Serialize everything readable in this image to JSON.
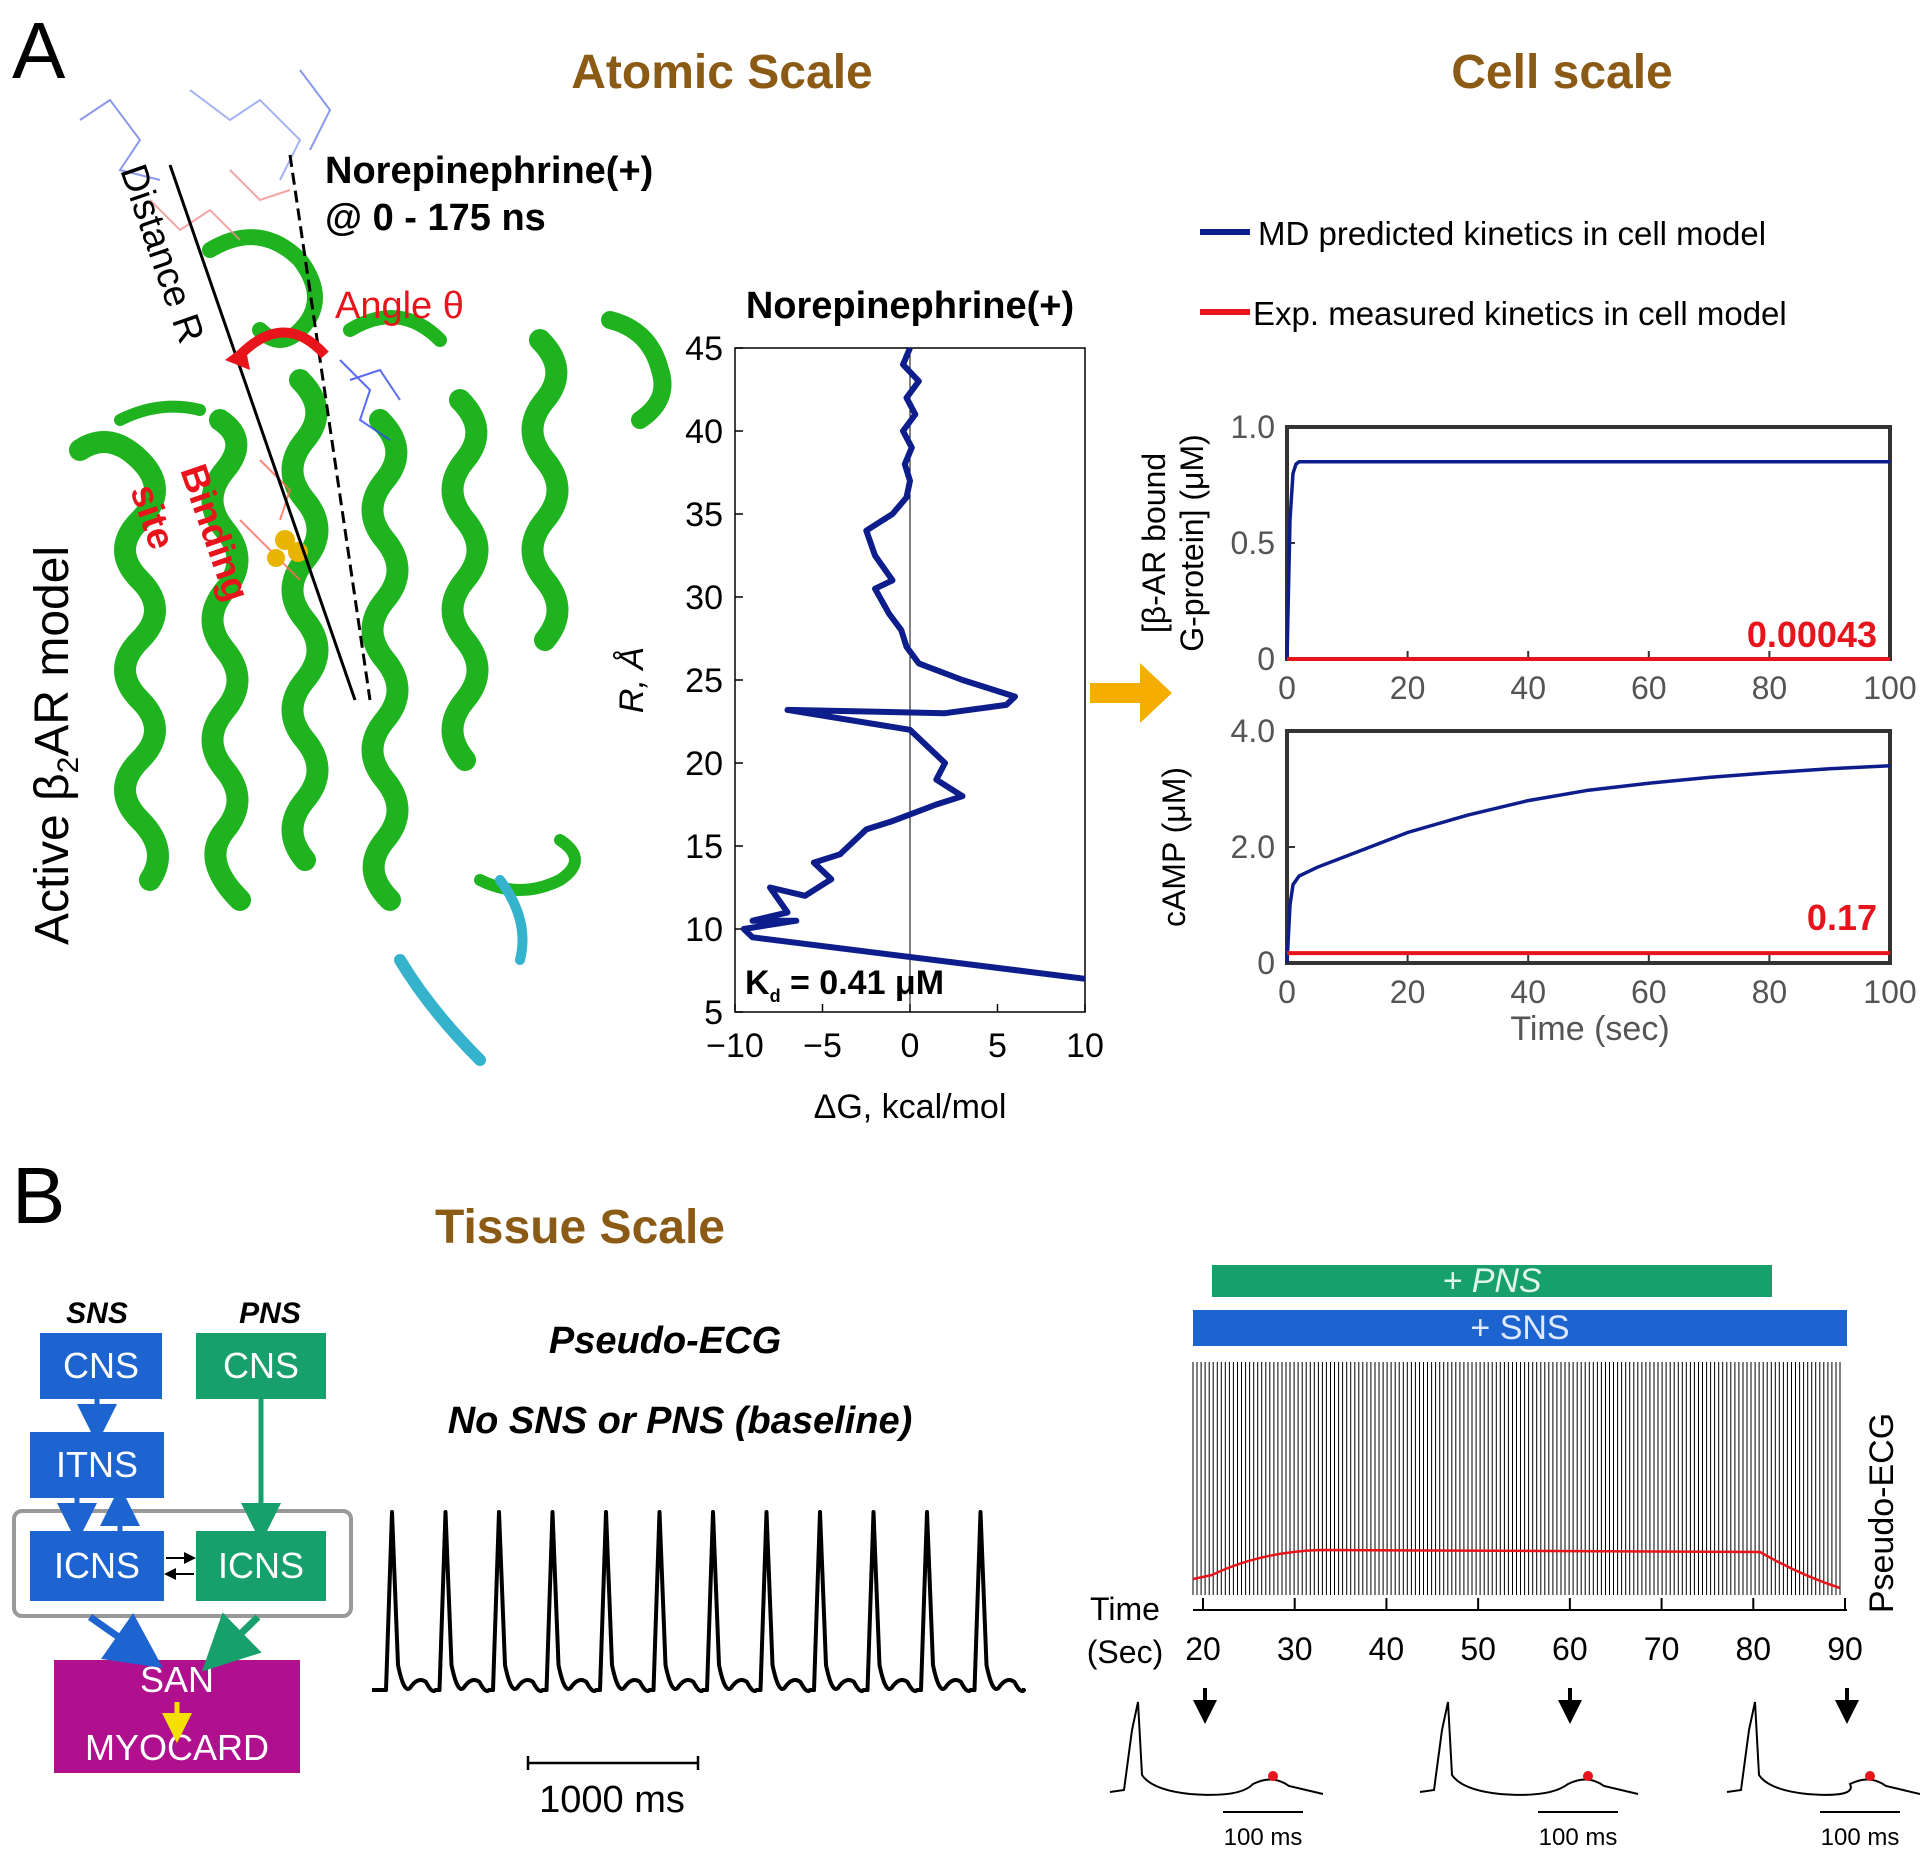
{
  "panel_a": {
    "label": "A",
    "atomic_title": "Atomic Scale",
    "cell_title": "Cell scale",
    "model_label": "Active β",
    "model_label_sub": "2",
    "model_label_tail": "AR model",
    "ligand_label": "Norepinephrine(+)",
    "time_label": "@ 0 - 175 ns",
    "distance_label": "Distance R",
    "angle_label": "Angle θ",
    "binding_label_1": "Binding",
    "binding_label_2": "site",
    "legend_md": "MD predicted kinetics in cell model",
    "legend_exp": "Exp. measured kinetics in cell model",
    "colors": {
      "md": "#0d1e8c",
      "exp": "#e8141c",
      "accent": "#8b5a14",
      "helix": "#1fb31f",
      "arrow": "#f5ad00"
    }
  },
  "panel_b": {
    "label": "B",
    "tissue_title": "Tissue Scale",
    "sns_header": "SNS",
    "pns_header": "PNS",
    "sns_cns": "CNS",
    "pns_cns": "CNS",
    "itns": "ITNS",
    "sns_icns": "ICNS",
    "pns_icns": "ICNS",
    "san": "SAN",
    "myocard": "MYOCARD",
    "ecg_title": "Pseudo-ECG",
    "ecg_subtitle": "No SNS or PNS (baseline)",
    "scale_bar": "1000 ms",
    "pns_bar": "+ PNS",
    "sns_bar": "+ SNS",
    "ecg_axis_label": "Pseudo-ECG",
    "time_axis_1": "Time",
    "time_axis_2": "(Sec)",
    "inset_scale": "100 ms",
    "time_ticks": [
      "20",
      "30",
      "40",
      "50",
      "60",
      "70",
      "80",
      "90"
    ],
    "colors": {
      "sns": "#1e64d0",
      "pns": "#17a06b",
      "san": "#b0108e"
    }
  },
  "chart_data": [
    {
      "type": "line",
      "title": "Norepinephrine(+)",
      "xlabel": "ΔG, kcal/mol",
      "ylabel": "R, Å",
      "xlim": [
        -10,
        10
      ],
      "ylim": [
        5,
        45
      ],
      "xticks": [
        "−10",
        "−5",
        "0",
        "5",
        "10"
      ],
      "yticks": [
        "5",
        "10",
        "15",
        "20",
        "25",
        "30",
        "35",
        "40",
        "45"
      ],
      "annotation": "K",
      "annotation_sub": "d",
      "annotation_tail": " = 0.41 μM",
      "series": [
        {
          "x": [
            0.0,
            -0.4,
            0.5,
            -0.2,
            0.3,
            -0.4,
            0.1,
            -0.3,
            0.0,
            -0.2,
            -1.0,
            -2.5,
            -2.0,
            -1.0,
            -2.0,
            -1.2,
            -0.5,
            -0.2,
            0.5,
            3.0,
            6.0,
            5.5,
            2.0,
            -7.0,
            0.0,
            1.0,
            2.0,
            1.5,
            3.0,
            1.5,
            -1.0,
            -2.5,
            -3.5,
            -4.0,
            -5.5,
            -4.5,
            -6.0,
            -8.0,
            -7.0,
            -9.0,
            -6.5,
            -9.5,
            -9.0,
            10.0
          ],
          "y": [
            45,
            44,
            43,
            42,
            41,
            40,
            39,
            38,
            37,
            36,
            35,
            34,
            32.5,
            31,
            30.5,
            29,
            28,
            27,
            26,
            25,
            24,
            23.5,
            23,
            23.2,
            22,
            21,
            20,
            19,
            18,
            17.5,
            16.5,
            16,
            15,
            14.5,
            14,
            13,
            12,
            12.5,
            11,
            10.5,
            10.5,
            10,
            9.5,
            7
          ]
        }
      ]
    },
    {
      "type": "line",
      "ylabel_line1": "[β-AR bound",
      "ylabel_line2": "G-protein] (μM)",
      "xlim": [
        0,
        100
      ],
      "ylim": [
        0,
        1.0
      ],
      "xticks": [
        "0",
        "20",
        "40",
        "60",
        "80",
        "100"
      ],
      "yticks": [
        "0",
        "0.5",
        "1.0"
      ],
      "annotation": "0.00043",
      "series": [
        {
          "x": [
            0,
            0.5,
            1,
            1.5,
            2,
            100
          ],
          "y": [
            0,
            0.6,
            0.8,
            0.84,
            0.85,
            0.85
          ]
        },
        {
          "x": [
            0,
            100
          ],
          "y": [
            0,
            0
          ]
        }
      ]
    },
    {
      "type": "line",
      "ylabel": "cAMP (μM)",
      "xlabel": "Time (sec)",
      "xlim": [
        0,
        100
      ],
      "ylim": [
        0,
        4.0
      ],
      "xticks": [
        "0",
        "20",
        "40",
        "60",
        "80",
        "100"
      ],
      "yticks": [
        "0",
        "2.0",
        "4.0"
      ],
      "annotation": "0.17",
      "series": [
        {
          "x": [
            0,
            0.5,
            1,
            2,
            5,
            10,
            20,
            30,
            40,
            50,
            60,
            70,
            80,
            90,
            100
          ],
          "y": [
            0,
            1.0,
            1.35,
            1.5,
            1.65,
            1.85,
            2.25,
            2.55,
            2.8,
            2.98,
            3.1,
            3.2,
            3.28,
            3.35,
            3.4
          ]
        },
        {
          "x": [
            0,
            100
          ],
          "y": [
            0.17,
            0.17
          ]
        }
      ]
    }
  ]
}
